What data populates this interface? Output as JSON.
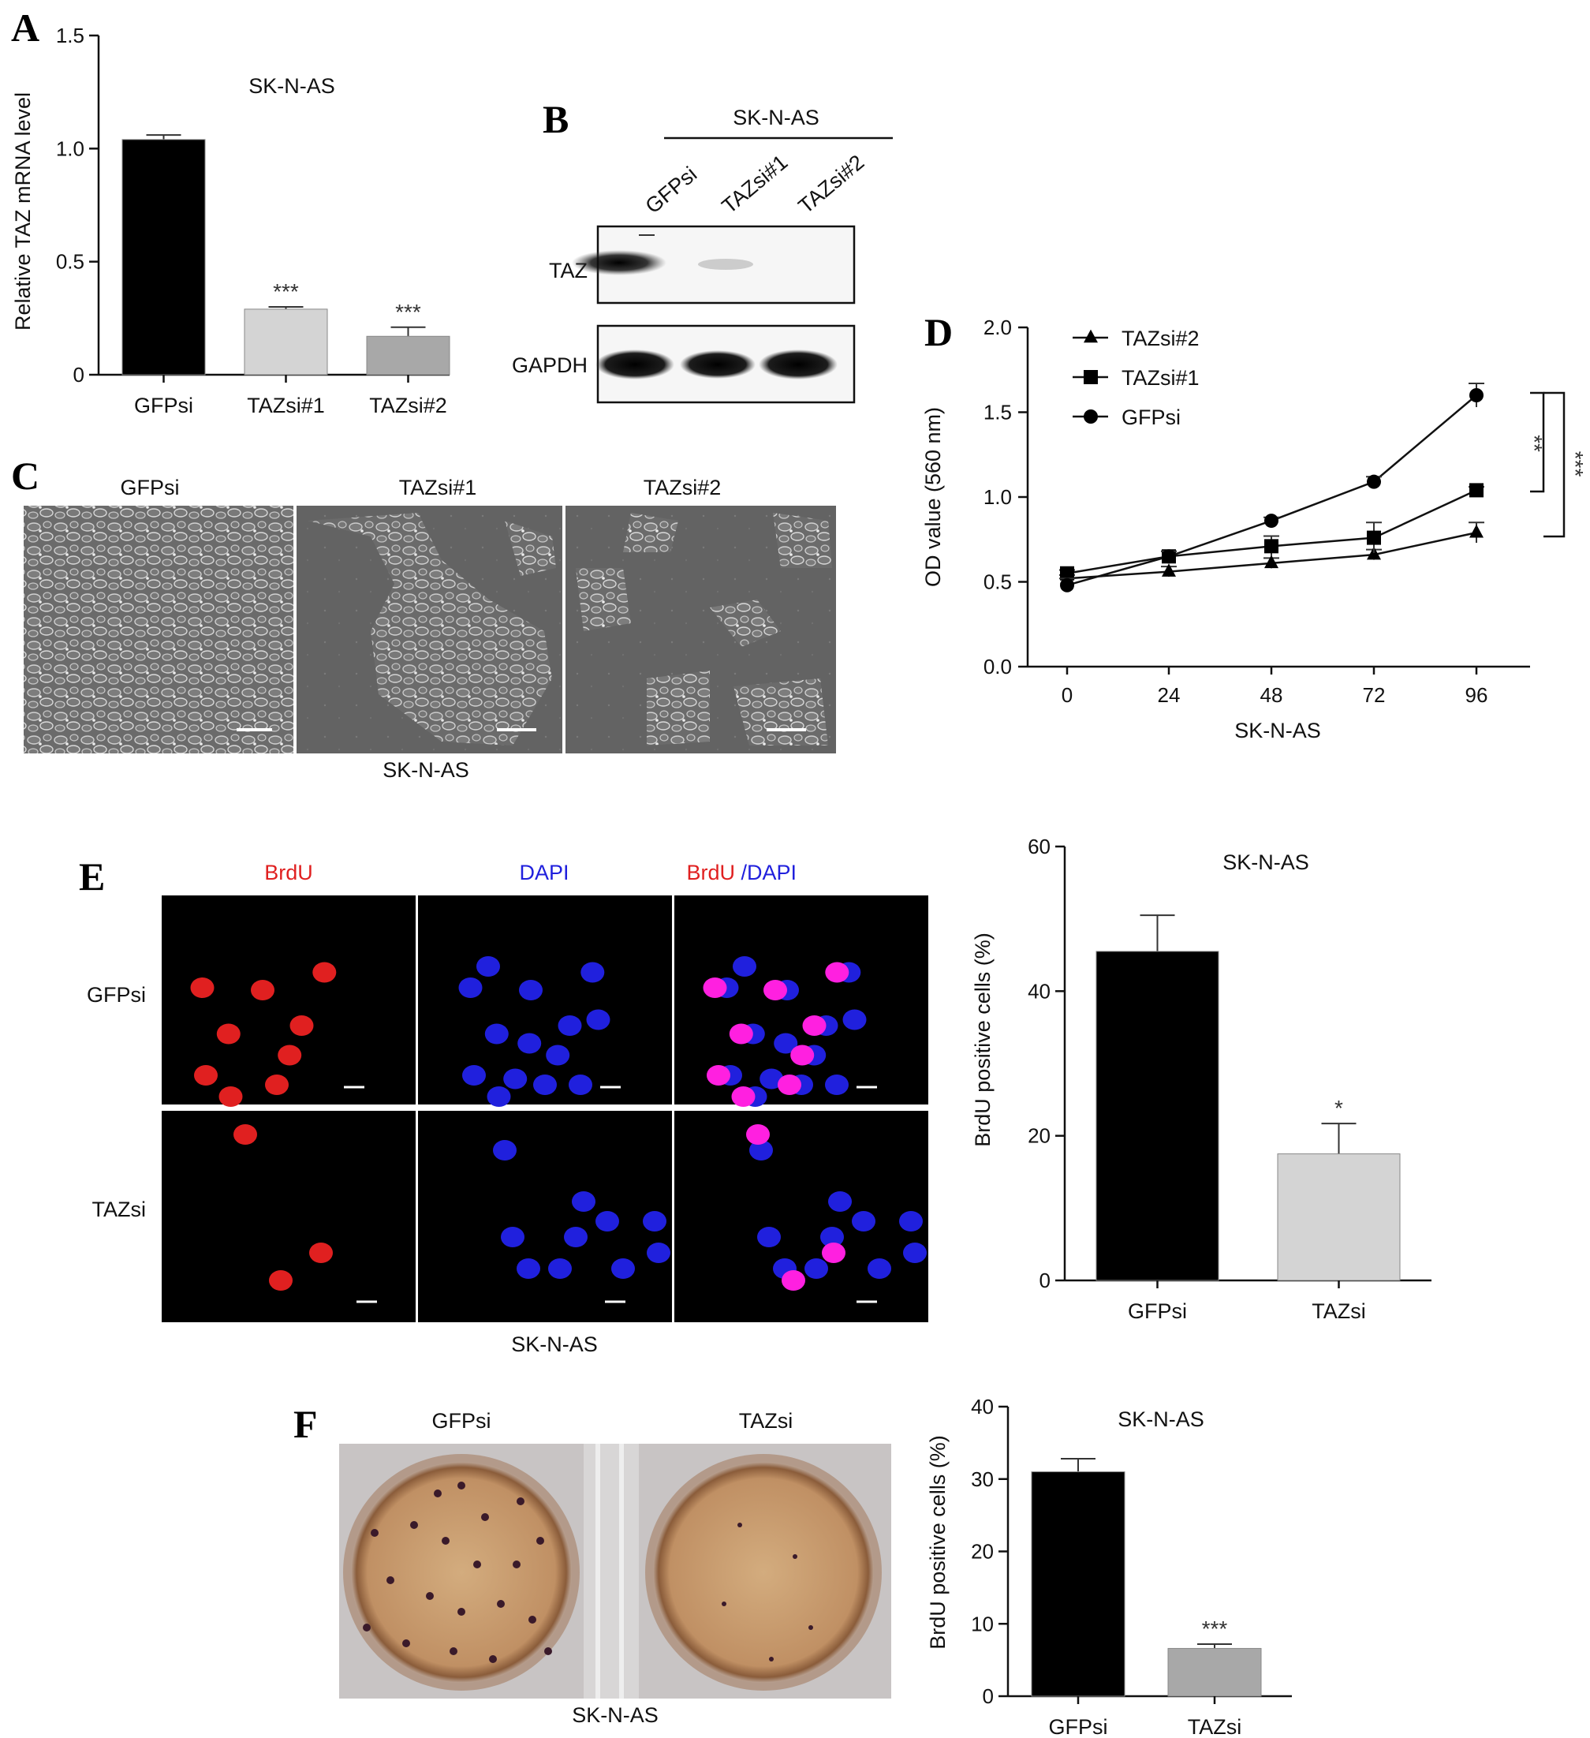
{
  "panels": {
    "A": {
      "label": "A",
      "title": "SK-N-AS",
      "ylabel": "Relative TAZ mRNA level",
      "yticks": [
        "0",
        "0.5",
        "1.0",
        "1.5"
      ],
      "categories": [
        "GFPsi",
        "TAZsi#1",
        "TAZsi#2"
      ],
      "stars": [
        "",
        "***",
        "***"
      ]
    },
    "B": {
      "label": "B",
      "title": "SK-N-AS",
      "lanes": [
        "GFPsi",
        "TAZsi#1",
        "TAZsi#2"
      ],
      "rows": [
        "TAZ",
        "GAPDH"
      ]
    },
    "C": {
      "label": "C",
      "columns": [
        "GFPsi",
        "TAZsi#1",
        "TAZsi#2"
      ],
      "caption": "SK-N-AS"
    },
    "D": {
      "label": "D",
      "ylabel": "OD value (560 nm)",
      "xlabel": "SK-N-AS",
      "yticks": [
        "0.0",
        "0.5",
        "1.0",
        "1.5",
        "2.0"
      ],
      "xticks": [
        "0",
        "24",
        "48",
        "72",
        "96"
      ],
      "legend": [
        "TAZsi#2",
        "TAZsi#1",
        "GFPsi"
      ],
      "sig": [
        "**",
        "***"
      ]
    },
    "E": {
      "label": "E",
      "col_brdu": "BrdU",
      "col_dapi": "DAPI",
      "col_merge_a": "BrdU",
      "col_merge_b": " /DAPI",
      "rows": [
        "GFPsi",
        "TAZsi"
      ],
      "caption": "SK-N-AS",
      "chart_title": "SK-N-AS",
      "ylabel": "BrdU positive cells (%)",
      "yticks": [
        "0",
        "20",
        "40",
        "60"
      ],
      "categories": [
        "GFPsi",
        "TAZsi"
      ],
      "stars": [
        "",
        "*"
      ]
    },
    "F": {
      "label": "F",
      "columns": [
        "GFPsi",
        "TAZsi"
      ],
      "caption": "SK-N-AS",
      "chart_title": "SK-N-AS",
      "ylabel": "BrdU positive cells (%)",
      "yticks": [
        "0",
        "10",
        "20",
        "30",
        "40"
      ],
      "categories": [
        "GFPsi",
        "TAZsi"
      ],
      "stars": [
        "",
        "***"
      ]
    }
  },
  "colors": {
    "black_bar": "#000000",
    "light_bar": "#d4d4d4",
    "mid_bar": "#a8a8a8",
    "brdu_red": "#e02020",
    "dapi_blue": "#2020dd"
  },
  "chart_data": [
    {
      "type": "bar",
      "panel": "A",
      "title": "SK-N-AS",
      "ylabel": "Relative TAZ mRNA level",
      "categories": [
        "GFPsi",
        "TAZsi#1",
        "TAZsi#2"
      ],
      "values": [
        1.04,
        0.29,
        0.17
      ],
      "errors": [
        0.02,
        0.01,
        0.04
      ],
      "ylim": [
        0,
        1.5
      ]
    },
    {
      "type": "line",
      "panel": "D",
      "xlabel": "SK-N-AS",
      "ylabel": "OD value (560 nm)",
      "x": [
        0,
        24,
        48,
        72,
        96
      ],
      "series": [
        {
          "name": "TAZsi#2",
          "values": [
            0.52,
            0.56,
            0.61,
            0.66,
            0.79
          ],
          "errors": [
            0.02,
            0.03,
            0.03,
            0.03,
            0.06
          ],
          "marker": "triangle"
        },
        {
          "name": "TAZsi#1",
          "values": [
            0.55,
            0.65,
            0.71,
            0.76,
            1.04
          ],
          "errors": [
            0.02,
            0.03,
            0.06,
            0.09,
            0.02
          ],
          "marker": "square"
        },
        {
          "name": "GFPsi",
          "values": [
            0.48,
            0.65,
            0.86,
            1.09,
            1.6
          ],
          "errors": [
            0.04,
            0.03,
            0.02,
            0.03,
            0.07
          ],
          "marker": "circle"
        }
      ],
      "ylim": [
        0,
        2.0
      ],
      "legend": "top-left"
    },
    {
      "type": "bar",
      "panel": "E",
      "title": "SK-N-AS",
      "ylabel": "BrdU positive cells (%)",
      "categories": [
        "GFPsi",
        "TAZsi"
      ],
      "values": [
        45.5,
        17.5
      ],
      "errors": [
        5.0,
        4.2
      ],
      "ylim": [
        0,
        60
      ]
    },
    {
      "type": "bar",
      "panel": "F",
      "title": "SK-N-AS",
      "ylabel": "BrdU positive cells (%)",
      "categories": [
        "GFPsi",
        "TAZsi"
      ],
      "values": [
        31.0,
        6.6
      ],
      "errors": [
        1.8,
        0.6
      ],
      "ylim": [
        0,
        40
      ]
    }
  ]
}
